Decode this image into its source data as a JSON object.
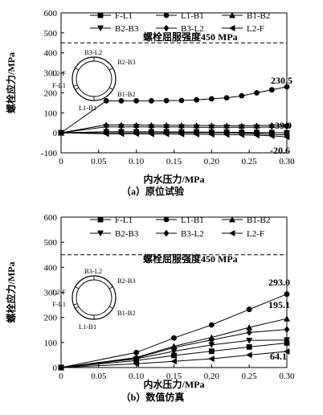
{
  "chart_data": [
    {
      "type": "line",
      "caption": "（a）原位试验",
      "xlabel": "内水压力/MPa",
      "ylabel": "螺栓应力/MPa",
      "xlim": [
        0,
        0.3
      ],
      "ylim": [
        -100,
        600
      ],
      "xticks": [
        0,
        0.05,
        0.1,
        0.15,
        0.2,
        0.25,
        0.3
      ],
      "yticks": [
        -100,
        0,
        100,
        200,
        300,
        400,
        500,
        600
      ],
      "reference_line": {
        "y": 450,
        "label": "螺栓屈服强度450 MPa"
      },
      "annotations": [
        "230.5",
        "39.9",
        "-20.6"
      ],
      "inset_labels": {
        "top": "B3-L2",
        "top_right": "B2-B3",
        "left_upper": "L2-F",
        "left_lower": "F-L1",
        "bottom_right": "B1-B2",
        "bottom_left": "L1-B1"
      },
      "legend_placement": "top",
      "x": [
        0,
        0.06,
        0.08,
        0.1,
        0.12,
        0.14,
        0.16,
        0.18,
        0.2,
        0.22,
        0.24,
        0.26,
        0.28,
        0.3
      ],
      "series": [
        {
          "name": "F-L1",
          "marker": "square",
          "values": [
            0,
            5,
            5,
            5,
            5,
            5,
            4,
            4,
            3,
            3,
            2,
            2,
            1,
            0
          ]
        },
        {
          "name": "L1-B1",
          "marker": "circle",
          "values": [
            0,
            160,
            160,
            160,
            160,
            161,
            162,
            165,
            170,
            175,
            185,
            200,
            215,
            230.5
          ]
        },
        {
          "name": "B1-B2",
          "marker": "triangle-up",
          "values": [
            0,
            40,
            39,
            39,
            38,
            38,
            37,
            37,
            36,
            36,
            35,
            36,
            38,
            39.9
          ]
        },
        {
          "name": "B2-B3",
          "marker": "triangle-down",
          "values": [
            0,
            30,
            30,
            30,
            29,
            29,
            29,
            28,
            28,
            28,
            28,
            28,
            29,
            30
          ]
        },
        {
          "name": "B3-L2",
          "marker": "diamond",
          "values": [
            0,
            5,
            5,
            4,
            4,
            3,
            3,
            2,
            1,
            0,
            -2,
            -5,
            -8,
            -10
          ]
        },
        {
          "name": "L2-F",
          "marker": "triangle-left",
          "values": [
            0,
            -5,
            -5,
            -5,
            -6,
            -6,
            -7,
            -7,
            -8,
            -9,
            -10,
            -12,
            -15,
            -20.6
          ]
        }
      ]
    },
    {
      "type": "line",
      "caption": "（b）数值仿真",
      "xlabel": "内水压力/MPa",
      "ylabel": "螺栓应力/MPa",
      "xlim": [
        0,
        0.3
      ],
      "ylim": [
        0,
        600
      ],
      "xticks": [
        0,
        0.05,
        0.1,
        0.15,
        0.2,
        0.25,
        0.3
      ],
      "yticks": [
        0,
        100,
        200,
        300,
        400,
        500,
        600
      ],
      "reference_line": {
        "y": 450,
        "label": "螺栓屈服强度450 MPa"
      },
      "annotations": [
        "293.0",
        "195.1",
        "64.1"
      ],
      "inset_labels": {
        "top": "B3-L2",
        "top_right": "B2-B3",
        "left_upper": "L2-F",
        "left_lower": "F-L1",
        "bottom_right": "B1-B2",
        "bottom_left": "L1-B1"
      },
      "legend_placement": "top",
      "x": [
        0,
        0.1,
        0.15,
        0.2,
        0.25,
        0.3
      ],
      "series": [
        {
          "name": "F-L1",
          "marker": "square",
          "values": [
            0,
            28,
            48,
            65,
            82,
            98
          ]
        },
        {
          "name": "L1-B1",
          "marker": "circle",
          "values": [
            0,
            60,
            118,
            170,
            232,
            293.0
          ]
        },
        {
          "name": "B1-B2",
          "marker": "triangle-up",
          "values": [
            0,
            40,
            85,
            120,
            160,
            195.1
          ]
        },
        {
          "name": "B2-B3",
          "marker": "triangle-down",
          "values": [
            0,
            35,
            65,
            90,
            108,
            110
          ]
        },
        {
          "name": "B3-L2",
          "marker": "diamond",
          "values": [
            0,
            38,
            80,
            110,
            140,
            152
          ]
        },
        {
          "name": "L2-F",
          "marker": "triangle-left",
          "values": [
            0,
            15,
            25,
            35,
            50,
            64.1
          ]
        }
      ]
    }
  ]
}
